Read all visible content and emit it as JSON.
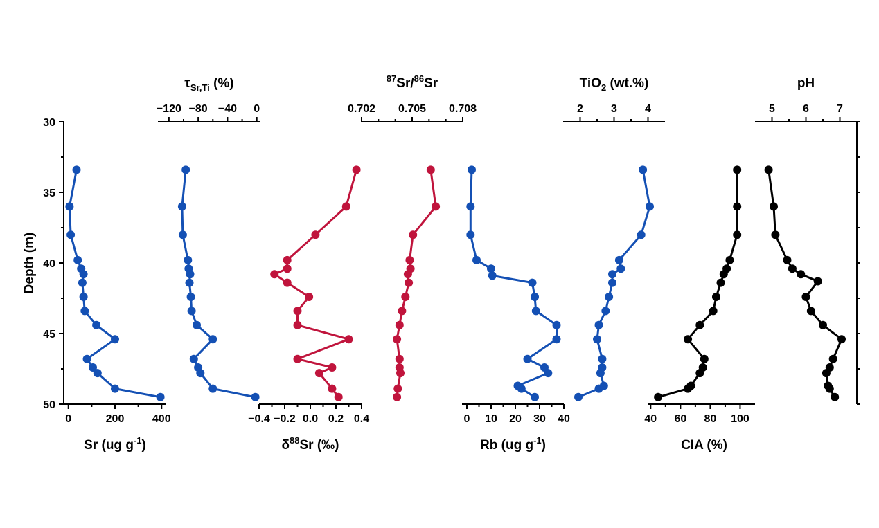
{
  "colors": {
    "blue": "#1450b4",
    "red": "#c0143c",
    "black": "#000000"
  },
  "depth_axis": {
    "label": "Depth (m)",
    "ticks": [
      30,
      35,
      40,
      45,
      50
    ],
    "range": [
      30,
      50
    ],
    "inverted": true
  },
  "chart_data": [
    {
      "type": "line",
      "id": "sr",
      "color": "blue",
      "xaxis_position": "bottom",
      "xlabel": "Sr (ug g-1)",
      "xlim": [
        -20,
        420
      ],
      "xticks": [
        0,
        200,
        400
      ],
      "minor_ticks": [
        100,
        300
      ],
      "x": [
        35,
        5,
        10,
        40,
        55,
        65,
        60,
        65,
        70,
        120,
        200,
        80,
        105,
        125,
        200,
        395
      ],
      "y": [
        33.4,
        36.0,
        38.0,
        39.8,
        40.4,
        40.8,
        41.4,
        42.4,
        43.4,
        44.4,
        45.4,
        46.8,
        47.4,
        47.8,
        48.9,
        49.5
      ]
    },
    {
      "type": "line",
      "id": "tau",
      "color": "blue",
      "xaxis_position": "top",
      "xlabel": "τSr,Ti (%)",
      "xlim": [
        -135,
        5
      ],
      "xticks": [
        -120,
        -80,
        -40,
        0
      ],
      "minor_ticks": [
        -100,
        -60,
        -20
      ],
      "x": [
        -97,
        -102,
        -101,
        -94,
        -93,
        -91,
        -92,
        -90,
        -89,
        -82,
        -60,
        -86,
        -80,
        -77,
        -60,
        -2
      ],
      "y": [
        33.4,
        36.0,
        38.0,
        39.8,
        40.4,
        40.8,
        41.4,
        42.4,
        43.4,
        44.4,
        45.4,
        46.8,
        47.4,
        47.8,
        48.9,
        49.5
      ]
    },
    {
      "type": "line",
      "id": "d88",
      "color": "red",
      "xaxis_position": "bottom",
      "xlabel": "δ88Sr (‰)",
      "xlim": [
        -0.4,
        0.4
      ],
      "xticks": [
        -0.4,
        -0.2,
        0.0,
        0.2,
        0.4
      ],
      "minor_ticks": [
        -0.3,
        -0.1,
        0.1,
        0.3
      ],
      "x": [
        0.36,
        0.28,
        0.04,
        -0.18,
        -0.18,
        -0.28,
        -0.18,
        -0.01,
        -0.1,
        -0.1,
        0.3,
        -0.1,
        0.17,
        0.07,
        0.17,
        0.22
      ],
      "y": [
        33.4,
        36.0,
        38.0,
        39.8,
        40.4,
        40.8,
        41.4,
        42.4,
        43.4,
        44.4,
        45.4,
        46.8,
        47.4,
        47.8,
        48.9,
        49.5
      ]
    },
    {
      "type": "line",
      "id": "sr8786",
      "color": "red",
      "xaxis_position": "top",
      "xlabel": "87Sr/86Sr",
      "xlim": [
        0.702,
        0.708
      ],
      "xticks": [
        0.702,
        0.705,
        0.708
      ],
      "minor_ticks": [
        0.703,
        0.704,
        0.706,
        0.707
      ],
      "x": [
        0.7061,
        0.7064,
        0.70505,
        0.70485,
        0.7049,
        0.70475,
        0.7048,
        0.7046,
        0.7044,
        0.70425,
        0.7041,
        0.70425,
        0.70425,
        0.7043,
        0.70415,
        0.7041
      ],
      "y": [
        33.4,
        36.0,
        38.0,
        39.8,
        40.4,
        40.8,
        41.4,
        42.4,
        43.4,
        44.4,
        45.4,
        46.8,
        47.4,
        47.8,
        48.9,
        49.5
      ]
    },
    {
      "type": "line",
      "id": "rb",
      "color": "blue",
      "xaxis_position": "bottom",
      "xlabel": "Rb (ug g-1)",
      "xlim": [
        -2,
        40
      ],
      "xticks": [
        0,
        10,
        20,
        30,
        40
      ],
      "minor_ticks": [
        5,
        15,
        25,
        35
      ],
      "x": [
        2,
        1.5,
        1.5,
        4,
        10,
        10.5,
        27,
        28,
        28.5,
        37,
        37,
        25,
        32,
        33.5,
        21,
        22.5,
        28
      ],
      "y": [
        33.4,
        36.0,
        38.0,
        39.8,
        40.4,
        40.9,
        41.4,
        42.4,
        43.4,
        44.4,
        45.4,
        46.8,
        47.4,
        47.8,
        48.7,
        48.9,
        49.5
      ]
    },
    {
      "type": "line",
      "id": "tio2",
      "color": "blue",
      "xaxis_position": "top",
      "xlabel": "TiO2 (wt.%)",
      "xlim": [
        1.5,
        4.5
      ],
      "xticks": [
        2,
        3,
        4
      ],
      "minor_ticks": [
        2.5,
        3.5
      ],
      "x": [
        3.85,
        4.05,
        3.8,
        3.15,
        3.2,
        2.95,
        2.95,
        2.85,
        2.75,
        2.55,
        2.5,
        2.65,
        2.65,
        2.6,
        2.7,
        2.55,
        1.95
      ],
      "y": [
        33.4,
        36.0,
        38.0,
        39.8,
        40.4,
        40.8,
        41.4,
        42.4,
        43.4,
        44.4,
        45.4,
        46.8,
        47.4,
        47.8,
        48.7,
        48.9,
        49.5
      ]
    },
    {
      "type": "line",
      "id": "cia",
      "color": "black",
      "xaxis_position": "bottom",
      "xlabel": "CIA (%)",
      "xlim": [
        38,
        110
      ],
      "xticks": [
        40,
        60,
        80,
        100
      ],
      "minor_ticks": [
        50,
        70,
        90
      ],
      "x": [
        98,
        98,
        98,
        93,
        91,
        89,
        87,
        84,
        82,
        73,
        65,
        76,
        75,
        73,
        67,
        65,
        45
      ],
      "y": [
        33.4,
        36.0,
        38.0,
        39.8,
        40.4,
        40.8,
        41.4,
        42.4,
        43.4,
        44.4,
        45.4,
        46.8,
        47.4,
        47.8,
        48.7,
        48.9,
        49.5
      ]
    },
    {
      "type": "line",
      "id": "ph",
      "color": "black",
      "xaxis_position": "top",
      "xlabel": "pH",
      "xlim": [
        4.5,
        7.5
      ],
      "xticks": [
        5,
        6,
        7
      ],
      "minor_ticks": [
        5.5,
        6.5
      ],
      "x": [
        4.9,
        5.05,
        5.1,
        5.45,
        5.6,
        5.85,
        6.35,
        6.0,
        6.15,
        6.5,
        7.05,
        6.8,
        6.7,
        6.6,
        6.65,
        6.7,
        6.85
      ],
      "y": [
        33.4,
        36.0,
        38.0,
        39.8,
        40.4,
        40.8,
        41.3,
        42.4,
        43.4,
        44.4,
        45.4,
        46.8,
        47.4,
        47.8,
        48.7,
        48.9,
        49.5
      ]
    }
  ]
}
